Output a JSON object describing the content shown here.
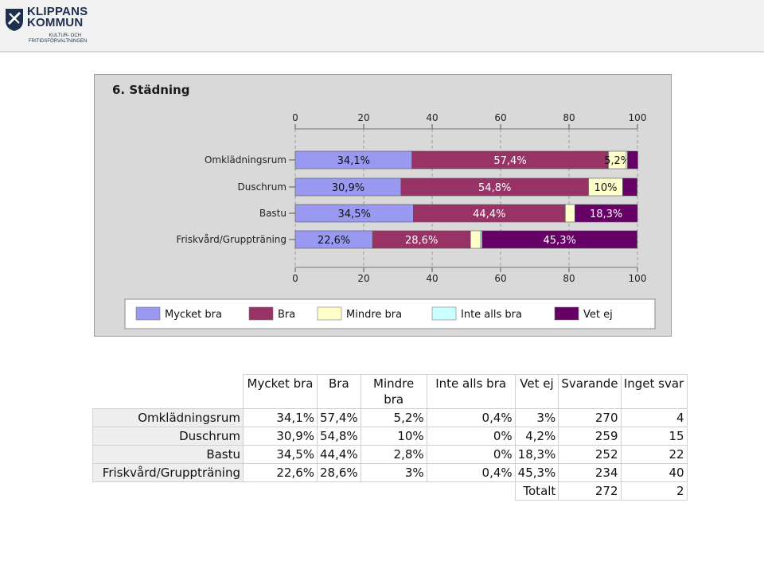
{
  "logo": {
    "name_line1": "KLIPPANS",
    "name_line2": "KOMMUN",
    "sub_line1": "KULTUR- OCH",
    "sub_line2": "FRITIDSFÖRVALTNINGEN"
  },
  "chart_data": {
    "type": "bar",
    "orientation": "horizontal",
    "stacked": true,
    "title": "6. Städning",
    "categories": [
      "Omklädningsrum",
      "Duschrum",
      "Bastu",
      "Friskvård/Gruppträning"
    ],
    "series": [
      {
        "name": "Mycket bra",
        "values": [
          34.1,
          30.9,
          34.5,
          22.6
        ],
        "labels": [
          "34,1%",
          "30,9%",
          "34,5%",
          "22,6%"
        ],
        "color": "#9999f2"
      },
      {
        "name": "Bra",
        "values": [
          57.4,
          54.8,
          44.4,
          28.6
        ],
        "labels": [
          "57,4%",
          "54,8%",
          "44,4%",
          "28,6%"
        ],
        "color": "#993366"
      },
      {
        "name": "Mindre bra",
        "values": [
          5.2,
          10,
          2.8,
          3
        ],
        "labels": [
          "5,2%",
          "10%",
          "",
          ""
        ],
        "color": "#ffffcc"
      },
      {
        "name": "Inte alls bra",
        "values": [
          0.4,
          0,
          0,
          0.4
        ],
        "labels": [
          "",
          "",
          "",
          ""
        ],
        "color": "#ccffff"
      },
      {
        "name": "Vet ej",
        "values": [
          3,
          4.2,
          18.3,
          45.3
        ],
        "labels": [
          "",
          "",
          "18,3%",
          "45,3%"
        ],
        "color": "#660066"
      }
    ],
    "xlim": [
      0,
      100
    ],
    "xticks": [
      "0",
      "20",
      "40",
      "60",
      "80",
      "100"
    ],
    "grid": true,
    "legend_position": "bottom"
  },
  "table": {
    "headers": [
      "Mycket bra",
      "Bra",
      "Mindre bra",
      "Inte alls bra",
      "Vet ej",
      "Svarande",
      "Inget svar"
    ],
    "rows": [
      {
        "label": "Omklädningsrum",
        "cells": [
          "34,1%",
          "57,4%",
          "5,2%",
          "0,4%",
          "3%",
          "270",
          "4"
        ]
      },
      {
        "label": "Duschrum",
        "cells": [
          "30,9%",
          "54,8%",
          "10%",
          "0%",
          "4,2%",
          "259",
          "15"
        ]
      },
      {
        "label": "Bastu",
        "cells": [
          "34,5%",
          "44,4%",
          "2,8%",
          "0%",
          "18,3%",
          "252",
          "22"
        ]
      },
      {
        "label": "Friskvård/Gruppträning",
        "cells": [
          "22,6%",
          "28,6%",
          "3%",
          "0,4%",
          "45,3%",
          "234",
          "40"
        ]
      }
    ],
    "total_label": "Totalt",
    "total_svarande": "272",
    "total_inget_svar": "2"
  }
}
